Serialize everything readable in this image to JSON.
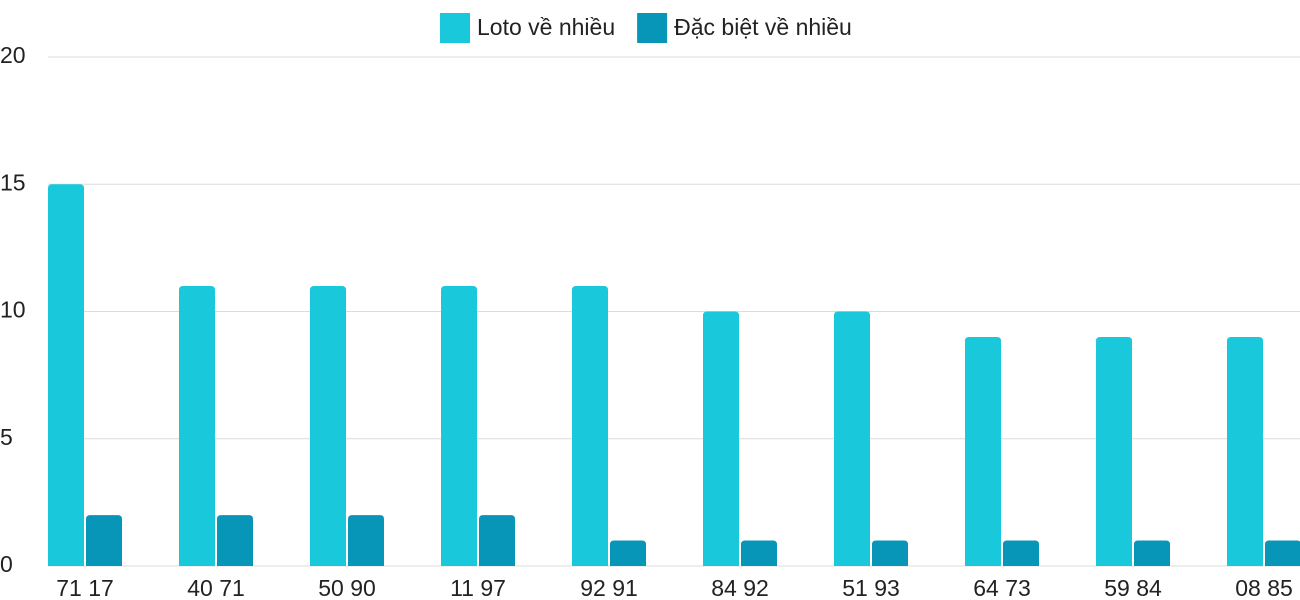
{
  "chart_data": {
    "type": "bar",
    "categories": [
      "71 17",
      "40 71",
      "50 90",
      "11 97",
      "92 91",
      "84 92",
      "51 93",
      "64 73",
      "59 84",
      "08 85"
    ],
    "series": [
      {
        "name": "Loto về nhiều",
        "color": "#1ac8db",
        "values": [
          15,
          11,
          11,
          11,
          11,
          10,
          10,
          9,
          9,
          9
        ]
      },
      {
        "name": "Đặc biệt về nhiều",
        "color": "#0795b8",
        "values": [
          2,
          2,
          2,
          2,
          1,
          1,
          1,
          1,
          1,
          1
        ]
      }
    ],
    "ylim": [
      0,
      20
    ],
    "yticks": [
      0,
      5,
      10,
      15,
      20
    ],
    "grid": true
  }
}
